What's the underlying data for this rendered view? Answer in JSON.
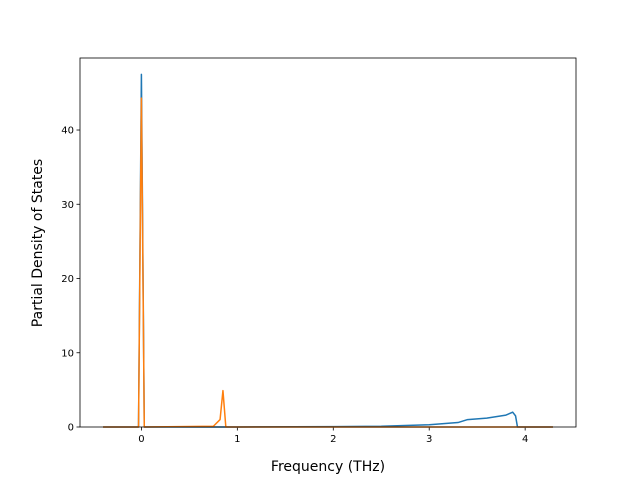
{
  "chart_data": {
    "type": "line",
    "xlabel": "Frequency (THz)",
    "ylabel": "Partial Density of States",
    "x": [
      -0.4,
      -0.03,
      0,
      0.03,
      0.75,
      0.82,
      0.85,
      0.88,
      1.0,
      2.0,
      2.5,
      3.0,
      3.3,
      3.4,
      3.6,
      3.8,
      3.87,
      3.9,
      3.92,
      4.29
    ],
    "series": [
      {
        "color": "#1f77b4",
        "values": [
          0,
          0,
          47.5,
          0,
          0,
          0,
          0,
          0,
          0,
          0.05,
          0.1,
          0.3,
          0.6,
          1.0,
          1.2,
          1.6,
          2.0,
          1.5,
          0,
          0
        ]
      },
      {
        "color": "#ff7f0e",
        "values": [
          0,
          0,
          44.3,
          0,
          0.1,
          1.0,
          4.9,
          0,
          0,
          0,
          0,
          0,
          0,
          0,
          0,
          0,
          0,
          0,
          0,
          0
        ]
      }
    ],
    "xlim": [
      -0.64,
      4.53
    ],
    "ylim": [
      0,
      49.7
    ],
    "xticks": [
      0,
      1,
      2,
      3,
      4
    ],
    "yticks": [
      0,
      10,
      20,
      30,
      40
    ]
  }
}
